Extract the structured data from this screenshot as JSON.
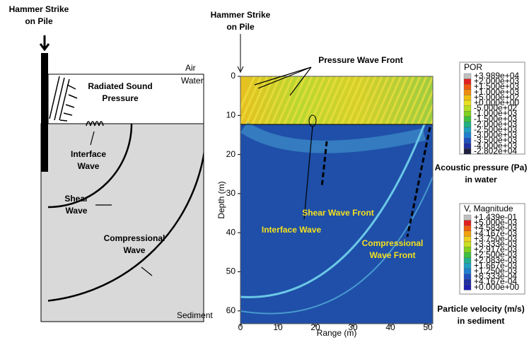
{
  "left": {
    "hammer": [
      "Hammer Strike",
      "on Pile"
    ],
    "air": "Air",
    "water": "Water",
    "radiated": [
      "Radiated Sound",
      "Pressure"
    ],
    "interface": [
      "Interface",
      "Wave"
    ],
    "shear": [
      "Shear",
      "Wave"
    ],
    "compressional": [
      "Compressional",
      "Wave"
    ],
    "sediment": "Sediment"
  },
  "right": {
    "hammer": [
      "Hammer Strike",
      "on Pile"
    ],
    "pressure_front": "Pressure Wave Front",
    "shear_front": "Shear Wave Front",
    "interface": "Interface Wave",
    "compressional_front": [
      "Compressional",
      "Wave Front"
    ],
    "ylabel": "Depth (m)",
    "xlabel": "Range (m)",
    "yticks": [
      0,
      10,
      20,
      30,
      40,
      50,
      60
    ],
    "xticks": [
      0,
      10,
      20,
      30,
      40,
      50
    ]
  },
  "legend_pressure": {
    "title": "POR",
    "labels": [
      "+3.989e+04",
      "+2.000e+03",
      "+1.500e+03",
      "+1.000e+03",
      "+5.000e+02",
      "+0.000e+00",
      "-5.000e+02",
      "-1.000e+03",
      "-1.500e+03",
      "-2.000e+03",
      "-2.500e+03",
      "-3.000e+03",
      "-3.500e+03",
      "-4.000e+03",
      "-2.802e+04"
    ],
    "caption": [
      "Acoustic pressure (Pa)",
      "in water"
    ]
  },
  "legend_velocity": {
    "title": "V, Magnitude",
    "labels": [
      "+1.439e-01",
      "+5.000e-03",
      "+4.583e-03",
      "+4.167e-03",
      "+3.750e-03",
      "+3.333e-03",
      "+2.917e-03",
      "+2.500e-03",
      "+2.083e-03",
      "+1.667e-03",
      "+1.250e-03",
      "+8.333e-04",
      "+4.167e-04",
      "+0.000e+00"
    ],
    "caption": [
      "Particle velocity (m/s)",
      "in sediment"
    ]
  }
}
